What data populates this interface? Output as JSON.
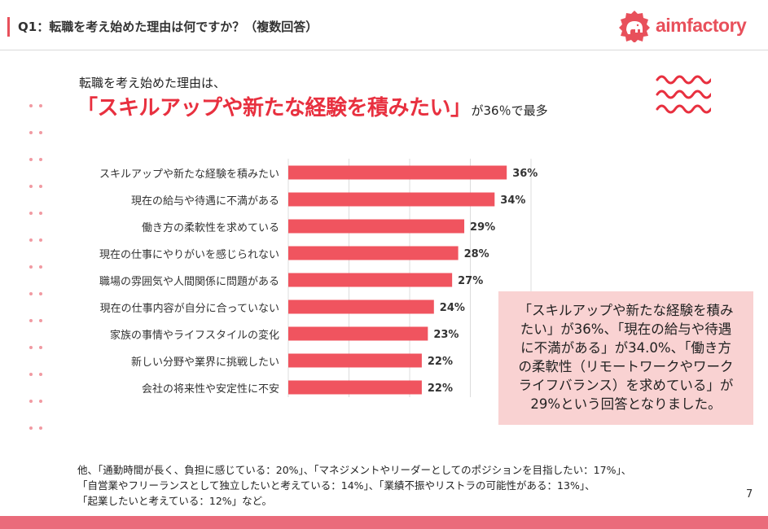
{
  "header": {
    "question": "Q1：転職を考え始めた理由は何ですか？（複数回答）",
    "logo_text": "aimfactory"
  },
  "headline": {
    "lead": "転職を考え始めた理由は、",
    "emphasis": "「スキルアップや新たな経験を積みたい」",
    "tail": "が36％で最多"
  },
  "chart_data": {
    "type": "bar",
    "orientation": "horizontal",
    "categories": [
      "スキルアップや新たな経験を積みたい",
      "現在の給与や待遇に不満がある",
      "働き方の柔軟性を求めている",
      "現在の仕事にやりがいを感じられない",
      "職場の雰囲気や人間関係に問題がある",
      "現在の仕事内容が自分に合っていない",
      "家族の事情やライフスタイルの変化",
      "新しい分野や業界に挑戦したい",
      "会社の将来性や安定性に不安"
    ],
    "values": [
      36,
      34,
      29,
      28,
      27,
      24,
      23,
      22,
      22
    ],
    "value_labels": [
      "36%",
      "34%",
      "29%",
      "28%",
      "27%",
      "24%",
      "23%",
      "22%",
      "22%"
    ],
    "xlim": [
      0,
      40
    ],
    "grid": true,
    "bar_color": "#f0545f"
  },
  "callout": {
    "lines": [
      "「スキルアップや新たな経験を積み",
      "たい」が36%、「現在の給与や待遇",
      "に不満がある」が34.0%、「働き方",
      "の柔軟性（リモートワークやワーク",
      "ライフバランス）を求めている」が",
      "29%という回答となりました。"
    ]
  },
  "footnote": {
    "lines": [
      "他、「通勤時間が長く、負担に感じている：20%」、「マネジメントやリーダーとしてのポジションを目指したい：17%」、",
      "「自営業やフリーランスとして独立したいと考えている：14%」、「業績不振やリストラの可能性がある：13%」、",
      "「起業したいと考えている：12%」など。"
    ]
  },
  "page_number": "7",
  "colors": {
    "accent": "#e8505b",
    "headline_red": "#e8303f",
    "callout_bg": "#f9d2d2",
    "bottom_bar": "#ea6b7b"
  }
}
